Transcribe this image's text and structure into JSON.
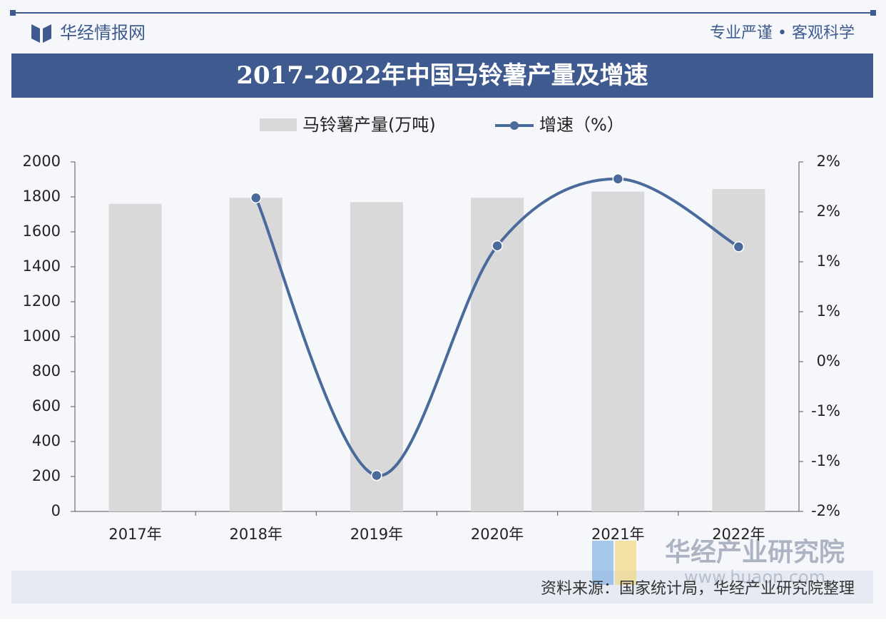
{
  "header": {
    "brand": "华经情报网",
    "slogan": "专业严谨 • 客观科学"
  },
  "chart_data": {
    "type": "bar_line",
    "title": "2017-2022年中国马铃薯产量及增速",
    "categories": [
      "2017年",
      "2018年",
      "2019年",
      "2020年",
      "2021年",
      "2022年"
    ],
    "series": [
      {
        "name": "马铃薯产量(万吨)",
        "color": "#d9d9d9",
        "values": [
          1760,
          1795,
          1770,
          1795,
          1830,
          1845
        ]
      },
      {
        "name": "增速（%）",
        "color": "#4a6a9c",
        "axis": "y2",
        "values": [
          null,
          1.64,
          -1.14,
          1.16,
          1.83,
          1.15
        ]
      }
    ],
    "ylim": [
      0,
      2000
    ],
    "yticks": [
      0,
      200,
      400,
      600,
      800,
      1000,
      1200,
      1400,
      1600,
      1800,
      2000
    ],
    "y2lim": [
      -1.5,
      2.0
    ],
    "y2ticks": [
      {
        "value": -1.5,
        "label": "-2%"
      },
      {
        "value": -1.0,
        "label": "-1%"
      },
      {
        "value": -0.5,
        "label": "-1%"
      },
      {
        "value": 0,
        "label": "0%"
      },
      {
        "value": 0.5,
        "label": "1%"
      },
      {
        "value": 1.0,
        "label": "1%"
      },
      {
        "value": 1.5,
        "label": "2%"
      },
      {
        "value": 2.0,
        "label": "2%"
      }
    ]
  },
  "footer": {
    "source": "资料来源：国家统计局，华经产业研究院整理",
    "watermark": "华经产业研究院",
    "watermark_url": "www.huaon.com"
  }
}
